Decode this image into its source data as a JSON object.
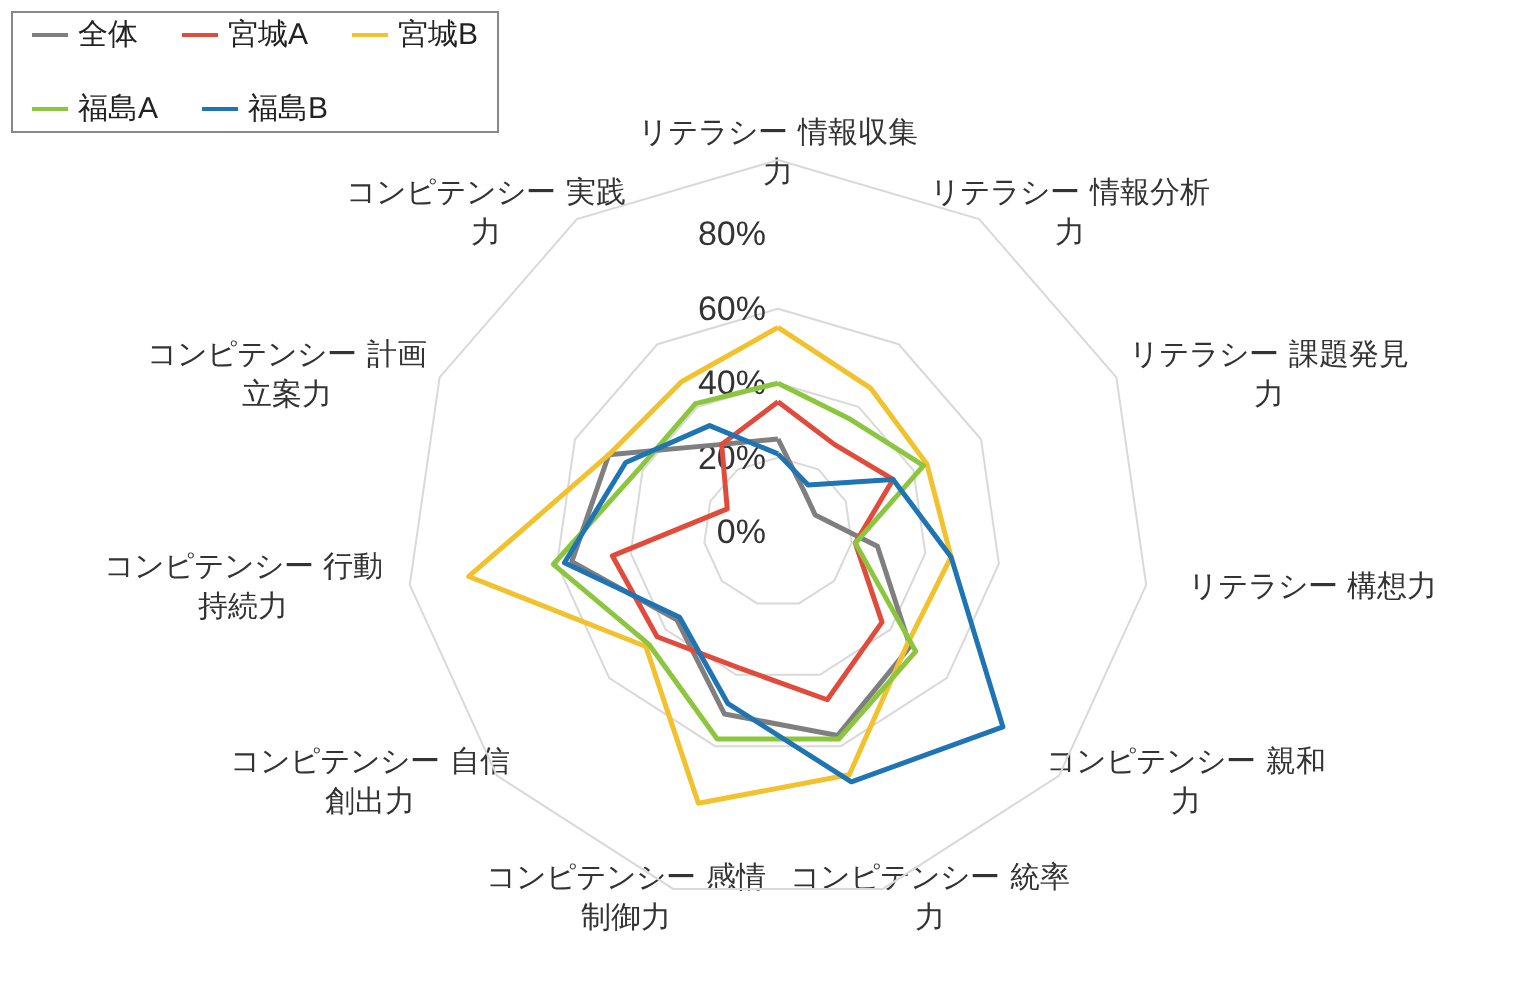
{
  "chart_data": {
    "type": "radar",
    "categories": [
      "リテラシー 情報収集力",
      "リテラシー 情報分析力",
      "リテラシー 課題発見力",
      "リテラシー 構想力",
      "コンピテンシー 親和力",
      "コンピテンシー 統率力",
      "コンピテンシー 感情制御力",
      "コンピテンシー 自信創出力",
      "コンピテンシー 行動持続力",
      "コンピテンシー 計画立案力",
      "コンピテンシー 実践力"
    ],
    "series": [
      {
        "name": "全体",
        "color": "#7f7f7f",
        "values": [
          25,
          13,
          11,
          27,
          47,
          57,
          51,
          36,
          56,
          50,
          28
        ]
      },
      {
        "name": "宮城A",
        "color": "#e04b3c",
        "values": [
          35,
          28,
          34,
          21,
          37,
          47,
          38,
          43,
          45,
          15,
          28
        ]
      },
      {
        "name": "宮城B",
        "color": "#f2c12e",
        "values": [
          55,
          46,
          44,
          47,
          46,
          68,
          76,
          47,
          84,
          50,
          48
        ]
      },
      {
        "name": "福島A",
        "color": "#8cc63f",
        "values": [
          40,
          36,
          43,
          21,
          49,
          58,
          58,
          46,
          61,
          41,
          41
        ]
      },
      {
        "name": "福島B",
        "color": "#1f74b4",
        "values": [
          21,
          15,
          34,
          47,
          80,
          70,
          48,
          35,
          58,
          45,
          34
        ]
      }
    ],
    "ylim": [
      0,
      100
    ],
    "yticks": [
      {
        "value": 0,
        "label": "0%"
      },
      {
        "value": 20,
        "label": "20%"
      },
      {
        "value": 40,
        "label": "40%"
      },
      {
        "value": 60,
        "label": "60%"
      },
      {
        "value": 80,
        "label": "80%"
      }
    ],
    "grid": true,
    "legend": "top left"
  }
}
